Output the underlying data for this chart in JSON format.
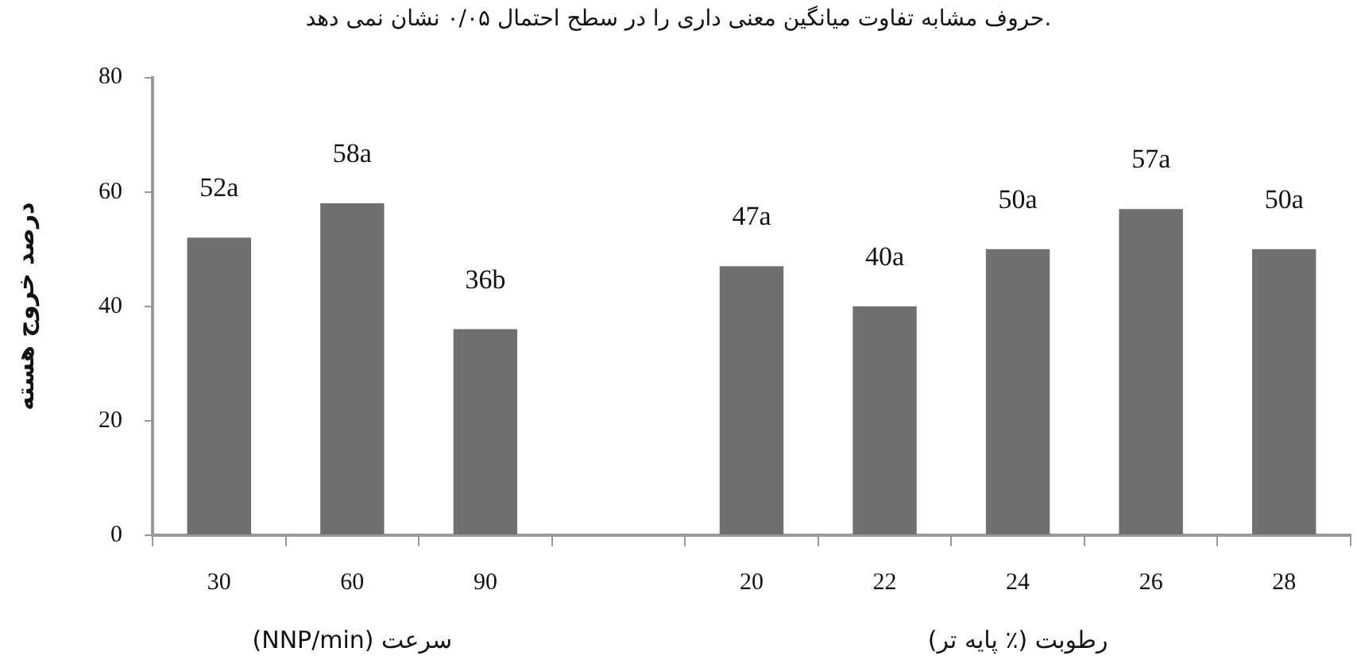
{
  "chart_data": {
    "type": "bar",
    "title": "حروف مشابه تفاوت میانگین معنی داری را در سطح احتمال ۰/۰۵ نشان نمی دهد.",
    "ylabel": "درصد خروج هسته",
    "categories": [
      "30",
      "60",
      "90",
      null,
      "20",
      "22",
      "24",
      "26",
      "28"
    ],
    "values": [
      52,
      58,
      36,
      null,
      47,
      40,
      50,
      57,
      50
    ],
    "value_labels": [
      "52a",
      "58a",
      "36b",
      null,
      "47a",
      "40a",
      "50a",
      "57a",
      "50a"
    ],
    "color": "#707070",
    "ylim": [
      0,
      80
    ],
    "yticks": [
      0,
      20,
      40,
      60,
      80
    ],
    "grid": false,
    "legend": false,
    "annotations": [
      "سرعت (NNP/min)",
      "رطوبت (٪ پایه تر)"
    ]
  }
}
